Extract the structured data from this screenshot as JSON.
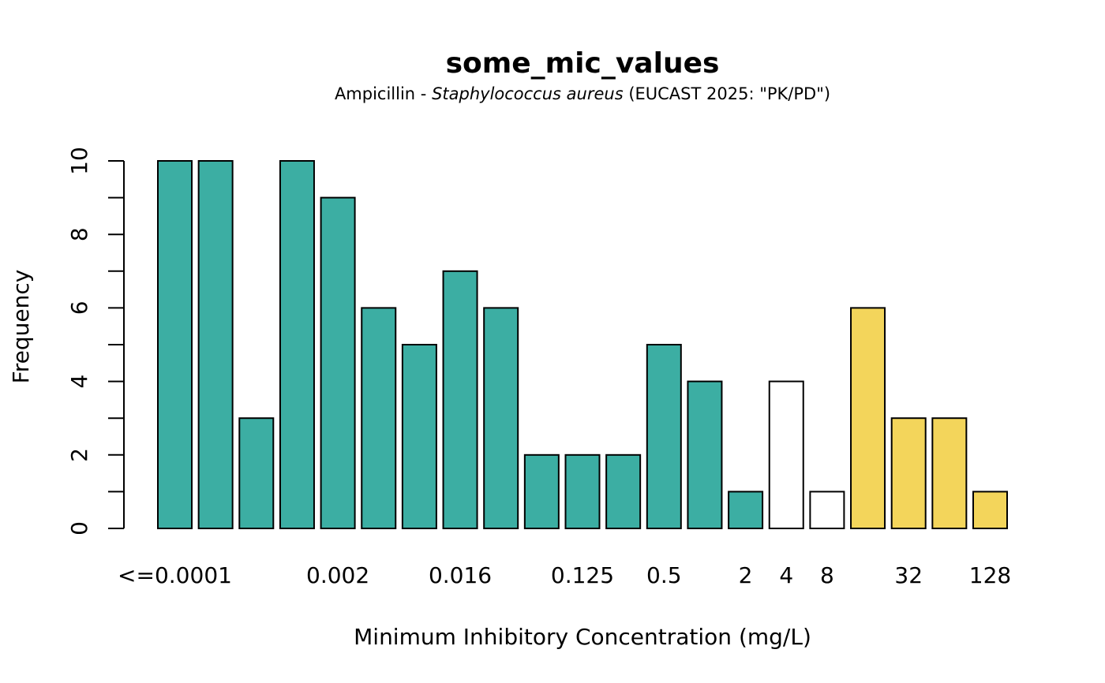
{
  "chart_data": {
    "type": "bar",
    "title": "some_mic_values",
    "subtitle": {
      "drug": "Ampicillin",
      "separator": " - ",
      "organism": "Staphylococcus aureus",
      "guideline": " (EUCAST 2025: \"PK/PD\")"
    },
    "xlabel": "Minimum Inhibitory Concentration (mg/L)",
    "ylabel": "Frequency",
    "ylim": [
      0,
      10
    ],
    "yticks": [
      0,
      2,
      4,
      6,
      8,
      10
    ],
    "categories": [
      "<=0.0001",
      "",
      "",
      "",
      "0.002",
      "",
      "",
      "0.016",
      "",
      "",
      "0.125",
      "",
      "0.5",
      "",
      "2",
      "4",
      "8",
      "",
      "32",
      "",
      "128"
    ],
    "values": [
      10,
      10,
      3,
      10,
      9,
      6,
      5,
      7,
      6,
      2,
      2,
      2,
      5,
      4,
      1,
      4,
      1,
      6,
      3,
      3,
      1
    ],
    "bar_status": [
      "S",
      "S",
      "S",
      "S",
      "S",
      "S",
      "S",
      "S",
      "S",
      "S",
      "S",
      "S",
      "S",
      "S",
      "S",
      "I",
      "I",
      "R",
      "R",
      "R",
      "R"
    ],
    "colors": {
      "S": "#3CAEA3",
      "I": "#FFFFFF",
      "R": "#F3D55B"
    },
    "grid": false,
    "legend": "none"
  }
}
